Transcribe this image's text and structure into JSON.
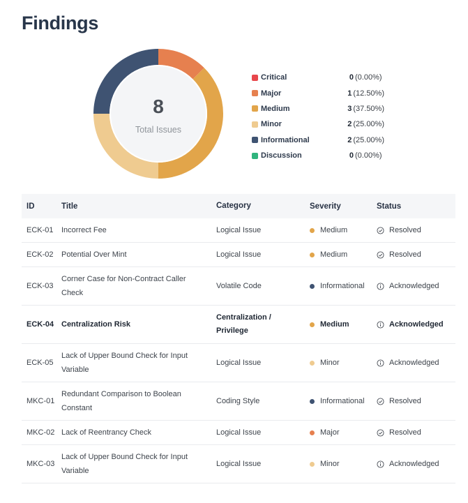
{
  "page": {
    "title": "Findings"
  },
  "summary": {
    "total_value": "8",
    "total_label": "Total Issues",
    "severities": [
      {
        "label": "Critical",
        "count": "0",
        "pct": "(0.00%)",
        "value": 0,
        "color": "#e8474c"
      },
      {
        "label": "Major",
        "count": "1",
        "pct": "(12.50%)",
        "value": 1,
        "color": "#e6804f"
      },
      {
        "label": "Medium",
        "count": "3",
        "pct": "(37.50%)",
        "value": 3,
        "color": "#e2a54a"
      },
      {
        "label": "Minor",
        "count": "2",
        "pct": "(25.00%)",
        "value": 2,
        "color": "#efcb90"
      },
      {
        "label": "Informational",
        "count": "2",
        "pct": "(25.00%)",
        "value": 2,
        "color": "#3f5372"
      },
      {
        "label": "Discussion",
        "count": "0",
        "pct": "(0.00%)",
        "value": 0,
        "color": "#30b47d"
      }
    ]
  },
  "table": {
    "headers": {
      "id": "ID",
      "title": "Title",
      "category": "Category",
      "severity": "Severity",
      "status": "Status"
    },
    "rows": [
      {
        "id": "ECK-01",
        "title": "Incorrect Fee",
        "category": "Logical Issue",
        "severity": "Medium",
        "sev_color": "#e2a54a",
        "status": "Resolved",
        "status_icon": "check-circle-icon"
      },
      {
        "id": "ECK-02",
        "title": "Potential Over Mint",
        "category": "Logical Issue",
        "severity": "Medium",
        "sev_color": "#e2a54a",
        "status": "Resolved",
        "status_icon": "check-circle-icon"
      },
      {
        "id": "ECK-03",
        "title": "Corner Case for Non-Contract Caller Check",
        "category": "Volatile Code",
        "severity": "Informational",
        "sev_color": "#3f5372",
        "status": "Acknowledged",
        "status_icon": "info-circle-icon"
      },
      {
        "id": "ECK-04",
        "title": "Centralization Risk",
        "category": "Centralization / Privilege",
        "severity": "Medium",
        "sev_color": "#e2a54a",
        "status": "Acknowledged",
        "status_icon": "info-circle-icon",
        "bold": true
      },
      {
        "id": "ECK-05",
        "title": "Lack of Upper Bound Check for Input Variable",
        "category": "Logical Issue",
        "severity": "Minor",
        "sev_color": "#efcb90",
        "status": "Acknowledged",
        "status_icon": "info-circle-icon"
      },
      {
        "id": "MKC-01",
        "title": "Redundant Comparison to Boolean Constant",
        "category": "Coding Style",
        "severity": "Informational",
        "sev_color": "#3f5372",
        "status": "Resolved",
        "status_icon": "check-circle-icon"
      },
      {
        "id": "MKC-02",
        "title": "Lack of Reentrancy Check",
        "category": "Logical Issue",
        "severity": "Major",
        "sev_color": "#e6804f",
        "status": "Resolved",
        "status_icon": "check-circle-icon"
      },
      {
        "id": "MKC-03",
        "title": "Lack of Upper Bound Check for Input Variable",
        "category": "Logical Issue",
        "severity": "Minor",
        "sev_color": "#efcb90",
        "status": "Acknowledged",
        "status_icon": "info-circle-icon"
      }
    ]
  }
}
